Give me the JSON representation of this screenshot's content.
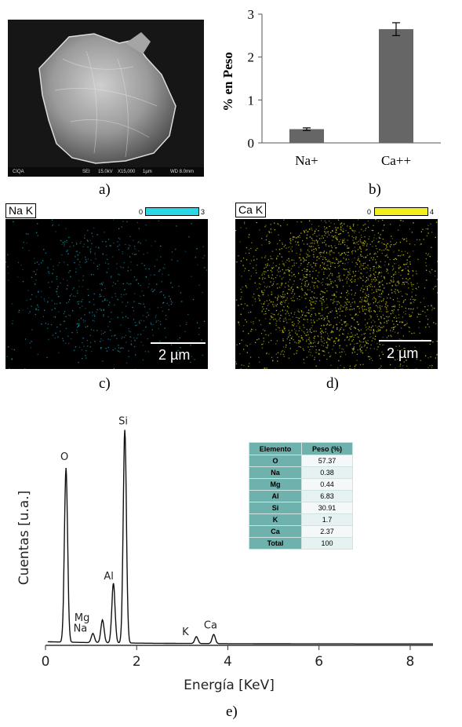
{
  "sem_panel": {
    "caption": "a)",
    "databar": [
      "CIQA",
      "SEI",
      "15.0kV",
      "X15,000",
      "1µm",
      "WD 8.0mm"
    ]
  },
  "bar_panel": {
    "caption": "b)",
    "chart_data": {
      "type": "bar",
      "categories": [
        "Na+",
        "Ca++"
      ],
      "values": [
        0.32,
        2.65
      ],
      "errors": [
        0.03,
        0.15
      ],
      "title": "",
      "xlabel": "",
      "ylabel": "% en Peso",
      "ylim": [
        0,
        3
      ],
      "yticks": [
        "0",
        "1",
        "2",
        "3"
      ],
      "bar_color": "#666666",
      "grid": false
    }
  },
  "map_na": {
    "caption": "c)",
    "label": "Na K",
    "scale_min": "0",
    "scale_max": "3",
    "color": "#29d6e4",
    "scale_bar": "2 µm"
  },
  "map_ca": {
    "caption": "d)",
    "label": "Ca K",
    "scale_min": "0",
    "scale_max": "4",
    "color": "#f4ef1c",
    "scale_bar": "2 µm"
  },
  "spectrum_panel": {
    "caption": "e)",
    "chart_data": {
      "type": "line",
      "xlabel": "Energía [KeV]",
      "ylabel": "Cuentas [u.a.]",
      "xlim": [
        0,
        8.5
      ],
      "xticks": [
        "0",
        "2",
        "4",
        "6",
        "8"
      ],
      "peaks": [
        {
          "label": "O",
          "energy": 0.45,
          "height": 0.76
        },
        {
          "label": "Na",
          "energy": 1.04,
          "height": 0.04
        },
        {
          "label": "Mg",
          "energy": 1.25,
          "height": 0.1
        },
        {
          "label": "Al",
          "energy": 1.49,
          "height": 0.26
        },
        {
          "label": "Si",
          "energy": 1.74,
          "height": 0.93
        },
        {
          "label": "K",
          "energy": 3.31,
          "height": 0.03
        },
        {
          "label": "Ca",
          "energy": 3.69,
          "height": 0.04
        }
      ]
    },
    "table": {
      "headers": [
        "Elemento",
        "Peso (%)"
      ],
      "rows": [
        {
          "element": "O",
          "weight": "57.37",
          "highlight": false
        },
        {
          "element": "Na",
          "weight": "0.38",
          "highlight": true
        },
        {
          "element": "Mg",
          "weight": "0.44",
          "highlight": false
        },
        {
          "element": "Al",
          "weight": "6.83",
          "highlight": false
        },
        {
          "element": "Si",
          "weight": "30.91",
          "highlight": false
        },
        {
          "element": "K",
          "weight": "1.7",
          "highlight": false
        },
        {
          "element": "Ca",
          "weight": "2.37",
          "highlight": true
        },
        {
          "element": "Total",
          "weight": "100",
          "highlight": false
        }
      ]
    }
  }
}
